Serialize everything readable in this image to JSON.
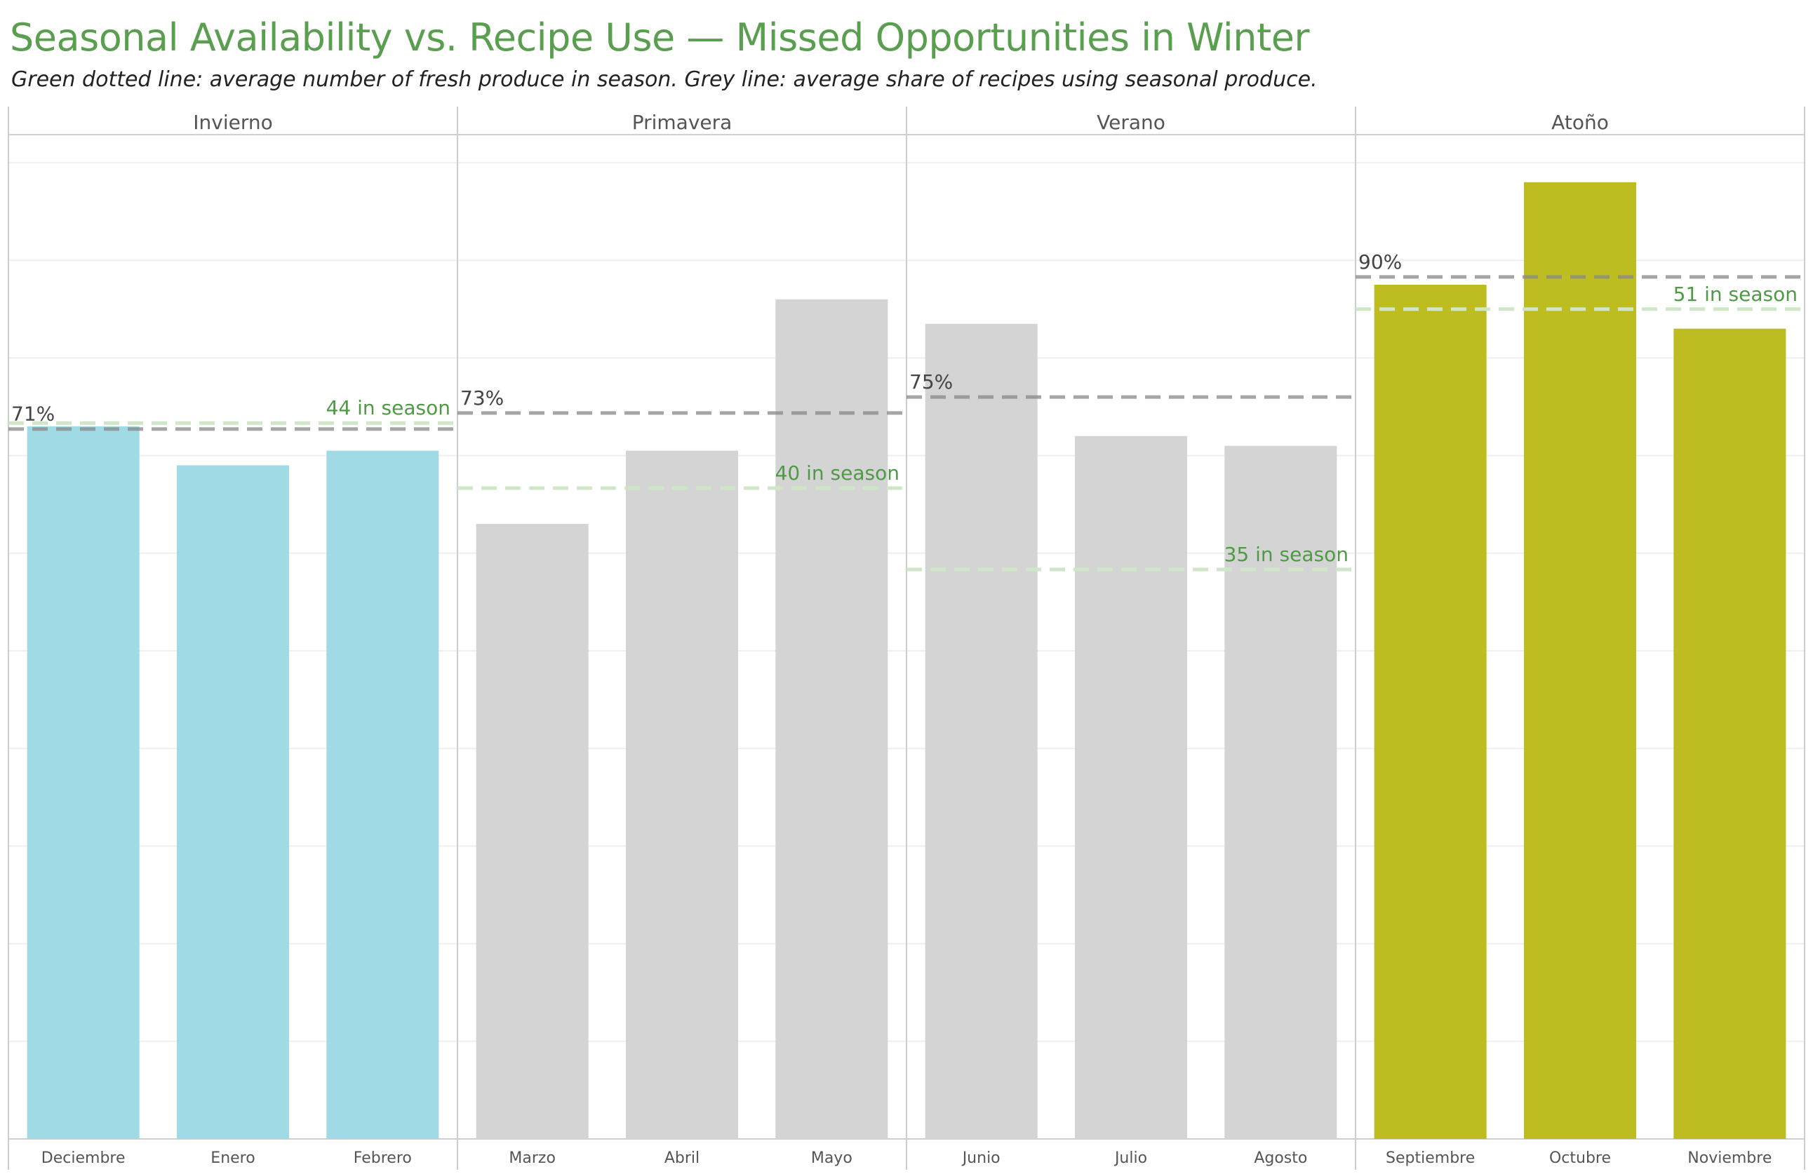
{
  "title": "Seasonal Availability vs. Recipe Use — Missed Opportunities in Winter",
  "subtitle": "Green dotted line: average number of fresh produce in season. Grey line: average share of recipes using seasonal produce.",
  "colors": {
    "title": "#5a9e4f",
    "winter": "#a0dae4",
    "neutral": "#d4d4d4",
    "autumn": "#bdbd22",
    "share_line": "#888888",
    "produce_line": "#cfe6c9",
    "produce_label": "#4f9a45",
    "share_label": "#444444"
  },
  "chart_data": {
    "type": "bar",
    "xlabel": "",
    "ylabel": "",
    "ylim": [
      0,
      100
    ],
    "grid": true,
    "panels": [
      {
        "name": "Invierno",
        "highlight": "winter",
        "months": [
          "Deciembre",
          "Enero",
          "Febrero"
        ],
        "values": [
          73,
          69,
          70.5
        ],
        "avg_share": 71,
        "avg_share_label": "71%",
        "avg_produce": 44,
        "avg_produce_label": "44 in season"
      },
      {
        "name": "Primavera",
        "highlight": "neutral",
        "months": [
          "Marzo",
          "Abril",
          "Mayo"
        ],
        "values": [
          63,
          70.5,
          86
        ],
        "avg_share": 73,
        "avg_share_label": "73%",
        "avg_produce": 40,
        "avg_produce_label": "40 in season"
      },
      {
        "name": "Verano",
        "highlight": "neutral",
        "months": [
          "Junio",
          "Julio",
          "Agosto"
        ],
        "values": [
          83.5,
          72,
          71
        ],
        "avg_share": 75,
        "avg_share_label": "75%",
        "avg_produce": 35,
        "avg_produce_label": "35 in season"
      },
      {
        "name": "Atoño",
        "highlight": "autumn",
        "months": [
          "Septiembre",
          "Octubre",
          "Noviembre"
        ],
        "values": [
          87.5,
          98,
          83
        ],
        "avg_share": 90,
        "avg_share_label": "90%",
        "avg_produce": 51,
        "avg_produce_label": "51 in season"
      }
    ]
  }
}
